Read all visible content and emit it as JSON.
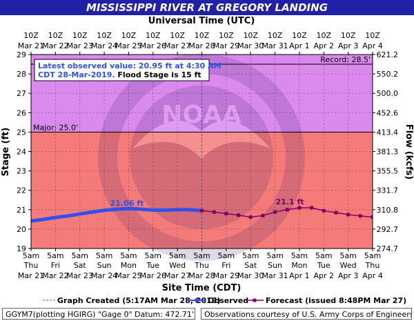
{
  "watermark": {
    "text": "NOAA"
  },
  "info_box": {
    "line1": "Latest observed value: 20.95 ft at 4:30 AM",
    "line2_date": "CDT 28-Mar-2019.",
    "line2_flood": " Flood Stage is 15 ft"
  },
  "legend": {
    "created": "Graph Created (5:17AM Mar 28, 2019)",
    "observed": "Observed",
    "forecast": "Forecast (issued 8:48PM Mar 27)"
  },
  "footer": {
    "gauge_info": "GGYM7(plotting HGIRG) \"Gage 0\" Datum: 472.71'",
    "courtesy": "Observations courtesy of U.S. Army Corps of Engineers"
  },
  "colors": {
    "title_bar": "#2020a8",
    "above_major": "#d98aec",
    "below_major": "#f57b7b",
    "observed": "#3050e8",
    "forecast": "#800060"
  },
  "chart_data": {
    "type": "line",
    "title": "MISSISSIPPI RIVER AT GREGORY LANDING",
    "top_axis_title": "Universal Time (UTC)",
    "xlabel": "Site Time (CDT)",
    "ylabel": "Stage (ft)",
    "y2label": "Flow (kcfs)",
    "ylim": [
      19,
      29
    ],
    "yticks": [
      19,
      20,
      21,
      22,
      23,
      24,
      25,
      26,
      27,
      28,
      29
    ],
    "y2ticks": [
      "274.7",
      "292.7",
      "310.8",
      "331.7",
      "355.5",
      "381.3",
      "413.4",
      "452.6",
      "500.0",
      "550.2",
      "621.2"
    ],
    "grid": true,
    "created_index": 7,
    "top_ticks": [
      [
        "10Z",
        "Mar 21"
      ],
      [
        "10Z",
        "Mar 22"
      ],
      [
        "10Z",
        "Mar 23"
      ],
      [
        "10Z",
        "Mar 24"
      ],
      [
        "10Z",
        "Mar 25"
      ],
      [
        "10Z",
        "Mar 26"
      ],
      [
        "10Z",
        "Mar 27"
      ],
      [
        "10Z",
        "Mar 28"
      ],
      [
        "10Z",
        "Mar 29"
      ],
      [
        "10Z",
        "Mar 30"
      ],
      [
        "10Z",
        "Mar 31"
      ],
      [
        "10Z",
        "Apr 1"
      ],
      [
        "10Z",
        "Apr 2"
      ],
      [
        "10Z",
        "Apr 3"
      ],
      [
        "10Z",
        "Apr 4"
      ]
    ],
    "bottom_ticks": [
      [
        "5am",
        "Thu",
        "Mar 21"
      ],
      [
        "5am",
        "Fri",
        "Mar 22"
      ],
      [
        "5am",
        "Sat",
        "Mar 23"
      ],
      [
        "5am",
        "Sun",
        "Mar 24"
      ],
      [
        "5am",
        "Mon",
        "Mar 25"
      ],
      [
        "5am",
        "Tue",
        "Mar 26"
      ],
      [
        "5am",
        "Wed",
        "Mar 27"
      ],
      [
        "5am",
        "Thu",
        "Mar 28"
      ],
      [
        "5am",
        "Fri",
        "Mar 29"
      ],
      [
        "5am",
        "Sat",
        "Mar 30"
      ],
      [
        "5am",
        "Sun",
        "Mar 31"
      ],
      [
        "5am",
        "Mon",
        "Apr 1"
      ],
      [
        "5am",
        "Tue",
        "Apr 2"
      ],
      [
        "5am",
        "Wed",
        "Apr 3"
      ],
      [
        "5am",
        "Thu",
        "Apr 4"
      ]
    ],
    "thresholds": {
      "major": 25.0,
      "major_label": "Major: 25.0'",
      "record": 28.5,
      "record_label": "Record: 28.5'"
    },
    "annotations": [
      "21.06 ft",
      "21.1 ft"
    ],
    "series": [
      {
        "name": "Observed",
        "x": [
          "Mar 21 5am",
          "Mar 21 5pm",
          "Mar 22 5am",
          "Mar 22 5pm",
          "Mar 23 5am",
          "Mar 23 5pm",
          "Mar 24 5am",
          "Mar 24 5pm",
          "Mar 25 5am",
          "Mar 25 5pm",
          "Mar 26 5am",
          "Mar 26 5pm",
          "Mar 27 5am",
          "Mar 27 5pm",
          "Mar 28 5am"
        ],
        "values": [
          20.42,
          20.5,
          20.6,
          20.68,
          20.78,
          20.88,
          20.97,
          21.02,
          21.06,
          21.03,
          20.98,
          20.98,
          21.0,
          21.0,
          20.95
        ]
      },
      {
        "name": "Forecast",
        "x": [
          "Mar 28 5am",
          "Mar 28 5pm",
          "Mar 29 5am",
          "Mar 29 5pm",
          "Mar 30 5am",
          "Mar 30 5pm",
          "Mar 31 5am",
          "Mar 31 5pm",
          "Apr 1 5am",
          "Apr 1 5pm",
          "Apr 2 5am",
          "Apr 2 5pm",
          "Apr 3 5am",
          "Apr 3 5pm",
          "Apr 4 5am"
        ],
        "values": [
          20.95,
          20.88,
          20.8,
          20.72,
          20.62,
          20.7,
          20.88,
          21.0,
          21.1,
          21.1,
          20.95,
          20.85,
          20.75,
          20.68,
          20.62
        ]
      }
    ]
  }
}
